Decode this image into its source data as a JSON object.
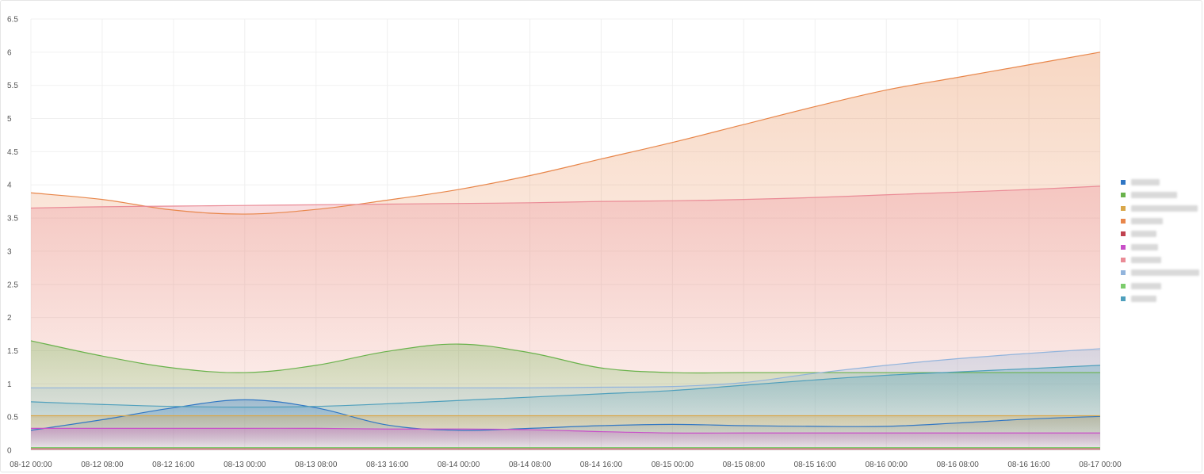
{
  "chart_data": {
    "type": "area",
    "title": "",
    "xlabel": "",
    "ylabel": "",
    "x": [
      "08-12 00:00",
      "08-12 08:00",
      "08-12 16:00",
      "08-13 00:00",
      "08-13 08:00",
      "08-13 16:00",
      "08-14 00:00",
      "08-14 08:00",
      "08-14 16:00",
      "08-15 00:00",
      "08-15 08:00",
      "08-15 16:00",
      "08-16 00:00",
      "08-16 08:00",
      "08-16 16:00",
      "08-17 00:00"
    ],
    "ylim": [
      0,
      6.5
    ],
    "yticks": [
      "0",
      "0.5",
      "1",
      "1.5",
      "2",
      "2.5",
      "3",
      "3.5",
      "4",
      "4.5",
      "5",
      "5.5",
      "6",
      "6.5"
    ],
    "grid": true,
    "legend_position": "right",
    "series": [
      {
        "color": "#2f76c4",
        "values": [
          0.3,
          0.46,
          0.64,
          0.76,
          0.64,
          0.38,
          0.3,
          0.33,
          0.37,
          0.39,
          0.37,
          0.36,
          0.36,
          0.41,
          0.47,
          0.51
        ]
      },
      {
        "color": "#69b24b",
        "values": [
          1.65,
          1.42,
          1.24,
          1.17,
          1.28,
          1.49,
          1.6,
          1.47,
          1.24,
          1.17,
          1.17,
          1.17,
          1.17,
          1.17,
          1.17,
          1.17
        ]
      },
      {
        "color": "#d9a74a",
        "values": [
          0.52,
          0.52,
          0.52,
          0.52,
          0.52,
          0.52,
          0.52,
          0.52,
          0.52,
          0.52,
          0.52,
          0.52,
          0.52,
          0.52,
          0.52,
          0.52
        ]
      },
      {
        "color": "#e8864a",
        "values": [
          3.88,
          3.78,
          3.62,
          3.56,
          3.63,
          3.77,
          3.93,
          4.14,
          4.39,
          4.64,
          4.91,
          5.18,
          5.43,
          5.62,
          5.81,
          6.0
        ]
      },
      {
        "color": "#c0414f",
        "values": [
          0.02,
          0.02,
          0.02,
          0.02,
          0.02,
          0.02,
          0.02,
          0.02,
          0.02,
          0.02,
          0.02,
          0.02,
          0.02,
          0.02,
          0.02,
          0.02
        ]
      },
      {
        "color": "#c84fc8",
        "values": [
          0.33,
          0.33,
          0.33,
          0.33,
          0.33,
          0.32,
          0.32,
          0.31,
          0.28,
          0.26,
          0.26,
          0.26,
          0.26,
          0.26,
          0.26,
          0.26
        ]
      },
      {
        "color": "#ea8b96",
        "values": [
          3.65,
          3.67,
          3.68,
          3.69,
          3.7,
          3.71,
          3.72,
          3.73,
          3.75,
          3.76,
          3.78,
          3.81,
          3.85,
          3.89,
          3.93,
          3.98
        ]
      },
      {
        "color": "#92b4dc",
        "values": [
          0.94,
          0.94,
          0.94,
          0.94,
          0.94,
          0.94,
          0.94,
          0.94,
          0.95,
          0.96,
          1.02,
          1.16,
          1.28,
          1.38,
          1.46,
          1.53
        ]
      },
      {
        "color": "#7ccc6c",
        "values": [
          0.04,
          0.04,
          0.04,
          0.04,
          0.04,
          0.04,
          0.04,
          0.04,
          0.04,
          0.04,
          0.04,
          0.04,
          0.04,
          0.04,
          0.04,
          0.04
        ]
      },
      {
        "color": "#4e9fbc",
        "values": [
          0.73,
          0.69,
          0.66,
          0.65,
          0.66,
          0.7,
          0.75,
          0.8,
          0.85,
          0.9,
          0.98,
          1.06,
          1.13,
          1.18,
          1.23,
          1.28
        ]
      }
    ]
  }
}
